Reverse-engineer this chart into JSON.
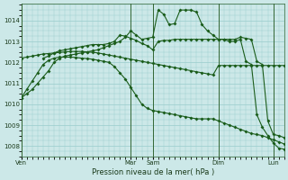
{
  "background_color": "#cce8e8",
  "grid_color": "#99cccc",
  "line_color1": "#1a5c1a",
  "line_color2": "#1a5c1a",
  "line_color3": "#1a5c1a",
  "line_color4": "#1a5c1a",
  "xlabel": "Pression niveau de la mer( hPa )",
  "ylim": [
    1007.5,
    1014.8
  ],
  "yticks": [
    1008,
    1009,
    1010,
    1011,
    1012,
    1013,
    1014
  ],
  "day_labels": [
    "Ven",
    "Mar",
    "Sam",
    "Dim",
    "Lun"
  ],
  "day_positions": [
    0,
    10,
    12,
    18,
    23
  ],
  "xlim": [
    0,
    24
  ],
  "vline_positions": [
    0,
    10,
    12,
    18,
    23
  ],
  "series1_x": [
    0,
    0.5,
    1,
    1.5,
    2,
    2.5,
    3,
    3.5,
    4,
    4.5,
    5,
    5.5,
    6,
    6.5,
    7,
    7.5,
    8,
    8.5,
    9,
    9.5,
    10,
    10.5,
    11,
    11.5,
    12,
    12.5,
    13,
    13.5,
    14,
    14.5,
    15,
    15.5,
    16,
    16.5,
    17,
    17.5,
    18,
    18.5,
    19,
    19.5,
    20,
    20.5,
    21,
    21.5,
    22,
    22.5,
    23,
    23.5,
    24
  ],
  "series1_y": [
    1010.3,
    1010.5,
    1010.7,
    1011.0,
    1011.3,
    1011.6,
    1012.0,
    1012.2,
    1012.3,
    1012.35,
    1012.4,
    1012.45,
    1012.5,
    1012.55,
    1012.6,
    1012.7,
    1012.8,
    1012.9,
    1013.0,
    1013.2,
    1013.5,
    1013.3,
    1013.1,
    1013.15,
    1013.2,
    1014.5,
    1014.3,
    1013.8,
    1013.85,
    1014.5,
    1014.5,
    1014.5,
    1014.4,
    1013.8,
    1013.5,
    1013.3,
    1013.1,
    1013.1,
    1013.1,
    1013.1,
    1013.2,
    1013.15,
    1013.1,
    1012.05,
    1011.9,
    1009.2,
    1008.55,
    1008.5,
    1008.4
  ],
  "series2_x": [
    2,
    2.5,
    3,
    3.5,
    4,
    4.5,
    5,
    5.5,
    6,
    6.5,
    7,
    7.5,
    8,
    8.5,
    9,
    9.5,
    10,
    10.5,
    11,
    11.5,
    12,
    12.5,
    13,
    13.5,
    14,
    14.5,
    15,
    15.5,
    16,
    16.5,
    17,
    17.5,
    18,
    18.5,
    19,
    19.5,
    20,
    20.5,
    21,
    21.5,
    22,
    22.5,
    23,
    23.5,
    24
  ],
  "series2_y": [
    1012.2,
    1012.3,
    1012.45,
    1012.55,
    1012.6,
    1012.65,
    1012.7,
    1012.75,
    1012.8,
    1012.85,
    1012.85,
    1012.85,
    1012.9,
    1013.0,
    1013.3,
    1013.25,
    1013.15,
    1013.05,
    1012.9,
    1012.8,
    1012.6,
    1013.0,
    1013.05,
    1013.05,
    1013.1,
    1013.1,
    1013.1,
    1013.1,
    1013.1,
    1013.1,
    1013.1,
    1013.1,
    1013.1,
    1013.1,
    1013.0,
    1013.0,
    1013.1,
    1012.05,
    1011.9,
    1009.5,
    1008.9,
    1008.5,
    1008.15,
    1007.9,
    1007.85
  ],
  "series3_x": [
    0,
    0.5,
    1,
    1.5,
    2,
    2.5,
    3,
    3.5,
    4,
    4.5,
    5,
    5.5,
    6,
    6.5,
    7,
    7.5,
    8,
    8.5,
    9,
    9.5,
    10,
    10.5,
    11,
    11.5,
    12,
    12.5,
    13,
    13.5,
    14,
    14.5,
    15,
    15.5,
    16,
    16.5,
    17,
    17.5,
    18,
    18.5,
    19,
    19.5,
    20,
    20.5,
    21,
    21.5,
    22,
    22.5,
    23,
    23.5,
    24
  ],
  "series3_y": [
    1012.2,
    1012.25,
    1012.3,
    1012.35,
    1012.4,
    1012.42,
    1012.45,
    1012.47,
    1012.5,
    1012.52,
    1012.52,
    1012.52,
    1012.5,
    1012.48,
    1012.45,
    1012.4,
    1012.35,
    1012.3,
    1012.25,
    1012.2,
    1012.15,
    1012.1,
    1012.05,
    1012.0,
    1011.95,
    1011.9,
    1011.85,
    1011.8,
    1011.75,
    1011.7,
    1011.65,
    1011.6,
    1011.55,
    1011.5,
    1011.45,
    1011.4,
    1011.85,
    1011.85,
    1011.85,
    1011.85,
    1011.85,
    1011.85,
    1011.85,
    1011.85,
    1011.85,
    1011.85,
    1011.85,
    1011.85,
    1011.85
  ],
  "series4_x": [
    0,
    0.5,
    1,
    1.5,
    2,
    2.5,
    3,
    3.5,
    4,
    4.5,
    5,
    5.5,
    6,
    6.5,
    7,
    7.5,
    8,
    8.5,
    9,
    9.5,
    10,
    10.5,
    11,
    11.5,
    12,
    12.5,
    13,
    13.5,
    14,
    14.5,
    15,
    15.5,
    16,
    16.5,
    17,
    17.5,
    18,
    18.5,
    19,
    19.5,
    20,
    20.5,
    21,
    21.5,
    22,
    22.5,
    23,
    23.5,
    24
  ],
  "series4_y": [
    1010.3,
    1010.7,
    1011.1,
    1011.5,
    1011.9,
    1012.1,
    1012.2,
    1012.25,
    1012.25,
    1012.25,
    1012.23,
    1012.2,
    1012.18,
    1012.15,
    1012.1,
    1012.05,
    1012.0,
    1011.8,
    1011.5,
    1011.2,
    1010.8,
    1010.4,
    1010.0,
    1009.8,
    1009.7,
    1009.65,
    1009.6,
    1009.55,
    1009.5,
    1009.45,
    1009.4,
    1009.35,
    1009.3,
    1009.3,
    1009.3,
    1009.3,
    1009.2,
    1009.1,
    1009.0,
    1008.9,
    1008.8,
    1008.7,
    1008.6,
    1008.55,
    1008.5,
    1008.4,
    1008.3,
    1008.2,
    1008.1
  ]
}
